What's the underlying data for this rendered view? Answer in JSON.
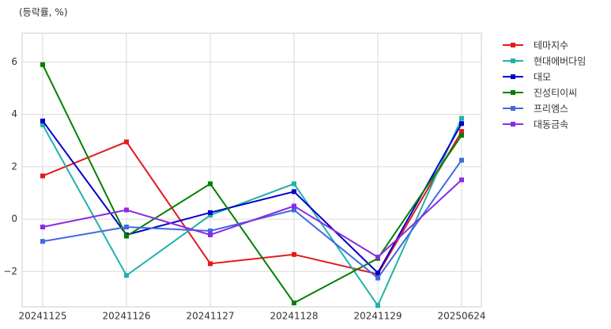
{
  "chart_data": {
    "type": "line",
    "ylabel": "(등락률, %)",
    "categories": [
      "20241125",
      "20241126",
      "20241127",
      "20241128",
      "20241129",
      "20250624"
    ],
    "series": [
      {
        "name": "테마지수",
        "color": "#e31a1c",
        "values": [
          1.65,
          2.95,
          -1.7,
          -1.35,
          -2.1,
          3.35
        ]
      },
      {
        "name": "현대에버다임",
        "color": "#20b2aa",
        "values": [
          3.6,
          -2.15,
          0.15,
          1.35,
          -3.3,
          3.85
        ]
      },
      {
        "name": "대모",
        "color": "#0000cd",
        "values": [
          3.75,
          -0.6,
          0.25,
          1.05,
          -2.05,
          3.65
        ]
      },
      {
        "name": "진성티이씨",
        "color": "#008000",
        "values": [
          5.9,
          -0.65,
          1.35,
          -3.2,
          -1.5,
          3.2
        ]
      },
      {
        "name": "프리엠스",
        "color": "#4169e1",
        "values": [
          -0.85,
          -0.3,
          -0.45,
          0.35,
          -2.25,
          2.25
        ]
      },
      {
        "name": "대동금속",
        "color": "#8a2be2",
        "values": [
          -0.3,
          0.35,
          -0.6,
          0.5,
          -1.45,
          1.5
        ]
      }
    ],
    "ylim": [
      -3.35,
      7.1
    ],
    "yticks": [
      {
        "value": -2,
        "label": "−2"
      },
      0,
      2,
      4,
      6
    ],
    "grid": true,
    "legend": "outside-right"
  }
}
